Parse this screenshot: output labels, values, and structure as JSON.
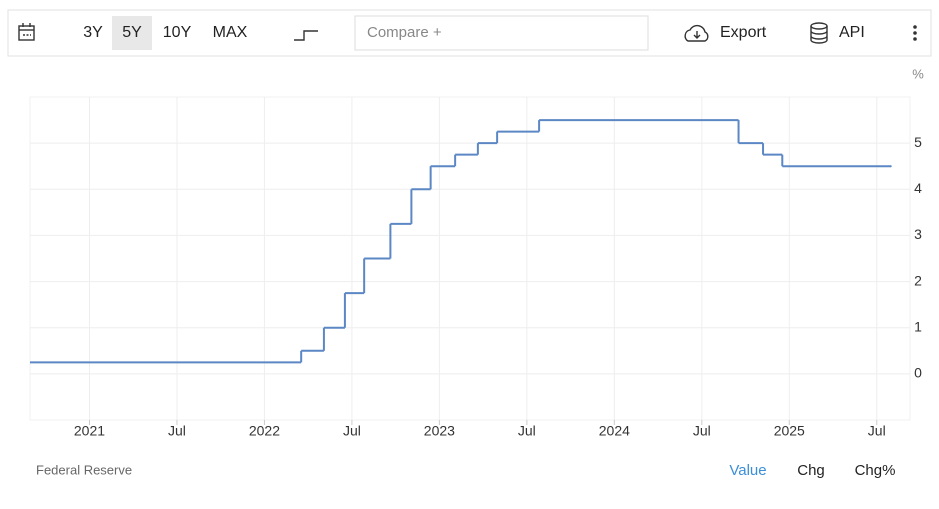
{
  "toolbar": {
    "ranges": [
      "3Y",
      "5Y",
      "10Y",
      "MAX"
    ],
    "selected": "5Y",
    "compare": "Compare +",
    "export": "Export",
    "api": "API"
  },
  "chart_data": {
    "type": "step",
    "y_label": "%",
    "x": [
      2020.66,
      2022.21,
      2022.34,
      2022.46,
      2022.57,
      2022.72,
      2022.84,
      2022.95,
      2023.09,
      2023.22,
      2023.33,
      2023.57,
      2024.71,
      2024.85,
      2024.96,
      2025.58
    ],
    "series": [
      {
        "name": "Value",
        "color": "#5b87c5",
        "values": [
          0.25,
          0.5,
          1,
          1.75,
          2.5,
          3.25,
          4,
          4.5,
          4.75,
          5,
          5.25,
          5.5,
          5,
          4.75,
          4.5,
          4.5
        ]
      }
    ],
    "xlim": [
      2020.66,
      2025.69
    ],
    "xticks": [
      {
        "value": 2021,
        "label": "2021"
      },
      {
        "value": 2021.5,
        "label": "Jul"
      },
      {
        "value": 2022,
        "label": "2022"
      },
      {
        "value": 2022.5,
        "label": "Jul"
      },
      {
        "value": 2023,
        "label": "2023"
      },
      {
        "value": 2023.5,
        "label": "Jul"
      },
      {
        "value": 2024,
        "label": "2024"
      },
      {
        "value": 2024.5,
        "label": "Jul"
      },
      {
        "value": 2025,
        "label": "2025"
      },
      {
        "value": 2025.5,
        "label": "Jul"
      }
    ],
    "ylim": [
      -1,
      6
    ],
    "yticks": [
      0,
      1,
      2,
      3,
      4,
      5
    ],
    "grid": true
  },
  "footer": {
    "source": "Federal Reserve",
    "tabs": [
      "Value",
      "Chg",
      "Chg%"
    ],
    "active_tab": "Value"
  }
}
